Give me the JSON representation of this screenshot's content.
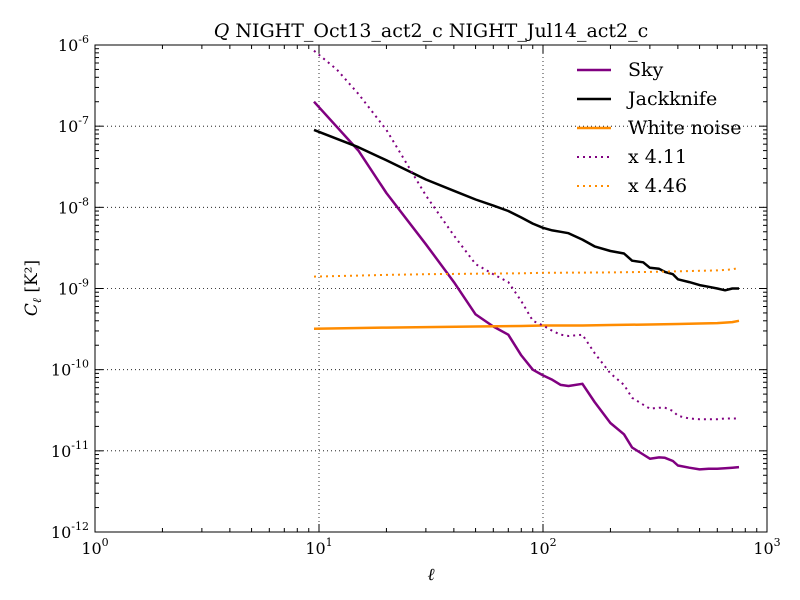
{
  "chart_data": {
    "type": "line",
    "title_prefix": "Q",
    "title_rest": "NIGHT_Oct13_act2_c NIGHT_Jul14_act2_c",
    "xlabel": "ℓ",
    "ylabel": "C",
    "ylabel_sub": "ℓ",
    "ylabel_unit": "[K²]",
    "xscale": "log",
    "yscale": "log",
    "xlim": [
      1,
      1000
    ],
    "ylim": [
      1e-12,
      1e-06
    ],
    "x_tick_base": "10",
    "x_tick_exponents": [
      "0",
      "1",
      "2",
      "3"
    ],
    "y_tick_base": "10",
    "y_tick_exponents": [
      "-12",
      "-11",
      "-10",
      "-9",
      "-8",
      "-7",
      "-6"
    ],
    "grid": true,
    "legend_position": "top-right",
    "series": [
      {
        "name": "Sky",
        "color": "#800080",
        "style": "solid",
        "x": [
          9.5,
          15,
          20,
          30,
          40,
          50,
          60,
          70,
          80,
          90,
          100,
          110,
          120,
          130,
          150,
          170,
          200,
          230,
          250,
          280,
          300,
          330,
          350,
          380,
          400,
          450,
          500,
          550,
          600,
          650,
          700,
          750
        ],
        "y": [
          2e-07,
          5e-08,
          1.5e-08,
          3.5e-09,
          1.2e-09,
          4.8e-10,
          3.4e-10,
          2.7e-10,
          1.5e-10,
          1e-10,
          8.5e-11,
          7.5e-11,
          6.5e-11,
          6.3e-11,
          6.7e-11,
          4e-11,
          2.2e-11,
          1.6e-11,
          1.1e-11,
          9e-12,
          8e-12,
          8.3e-12,
          8.2e-12,
          7.5e-12,
          6.6e-12,
          6.2e-12,
          5.9e-12,
          6e-12,
          6e-12,
          6.1e-12,
          6.2e-12,
          6.3e-12
        ]
      },
      {
        "name": "Jackknife",
        "color": "#000000",
        "style": "solid",
        "x": [
          9.5,
          15,
          20,
          30,
          40,
          50,
          60,
          70,
          80,
          90,
          100,
          110,
          120,
          130,
          150,
          170,
          200,
          230,
          250,
          280,
          300,
          330,
          350,
          380,
          400,
          450,
          500,
          550,
          600,
          650,
          700,
          750
        ],
        "y": [
          9e-08,
          5.5e-08,
          3.8e-08,
          2.2e-08,
          1.6e-08,
          1.25e-08,
          1.05e-08,
          9e-09,
          7.5e-09,
          6.3e-09,
          5.6e-09,
          5.2e-09,
          5e-09,
          4.8e-09,
          4e-09,
          3.3e-09,
          2.9e-09,
          2.7e-09,
          2.2e-09,
          2.1e-09,
          1.8e-09,
          1.75e-09,
          1.6e-09,
          1.5e-09,
          1.3e-09,
          1.2e-09,
          1.1e-09,
          1.05e-09,
          1e-09,
          9.5e-10,
          1e-09,
          1e-09
        ]
      },
      {
        "name": "White noise",
        "color": "#ff8c00",
        "style": "solid",
        "x": [
          9.5,
          20,
          30,
          50,
          80,
          100,
          150,
          200,
          300,
          400,
          500,
          600,
          700,
          750
        ],
        "y": [
          3.2e-10,
          3.3e-10,
          3.35e-10,
          3.4e-10,
          3.45e-10,
          3.5e-10,
          3.5e-10,
          3.55e-10,
          3.6e-10,
          3.65e-10,
          3.7e-10,
          3.75e-10,
          3.85e-10,
          4e-10
        ]
      },
      {
        "name": "x 4.11",
        "color": "#800080",
        "style": "dotted",
        "x": [
          9.5,
          12,
          15,
          20,
          30,
          40,
          50,
          60,
          70,
          80,
          90,
          100,
          110,
          120,
          130,
          150,
          170,
          200,
          230,
          250,
          280,
          300,
          330,
          350,
          380,
          400,
          450,
          500,
          550,
          600,
          650,
          700,
          750
        ],
        "y": [
          8.5e-07,
          5e-07,
          2.5e-07,
          9e-08,
          1.4e-08,
          4.5e-09,
          2e-09,
          1.5e-09,
          1.2e-09,
          7e-10,
          4e-10,
          3.5e-10,
          3e-10,
          2.7e-10,
          2.6e-10,
          2.7e-10,
          1.6e-10,
          9e-11,
          6.5e-11,
          4.5e-11,
          3.7e-11,
          3.3e-11,
          3.4e-11,
          3.4e-11,
          3.1e-11,
          2.7e-11,
          2.5e-11,
          2.45e-11,
          2.45e-11,
          2.45e-11,
          2.5e-11,
          2.5e-11,
          2.5e-11
        ]
      },
      {
        "name": "x 4.46",
        "color": "#ff8c00",
        "style": "dotted",
        "x": [
          9.5,
          20,
          30,
          50,
          80,
          100,
          150,
          200,
          300,
          400,
          500,
          600,
          700,
          750
        ],
        "y": [
          1.4e-09,
          1.47e-09,
          1.5e-09,
          1.52e-09,
          1.54e-09,
          1.56e-09,
          1.57e-09,
          1.58e-09,
          1.6e-09,
          1.63e-09,
          1.65e-09,
          1.67e-09,
          1.72e-09,
          1.8e-09
        ]
      }
    ]
  }
}
